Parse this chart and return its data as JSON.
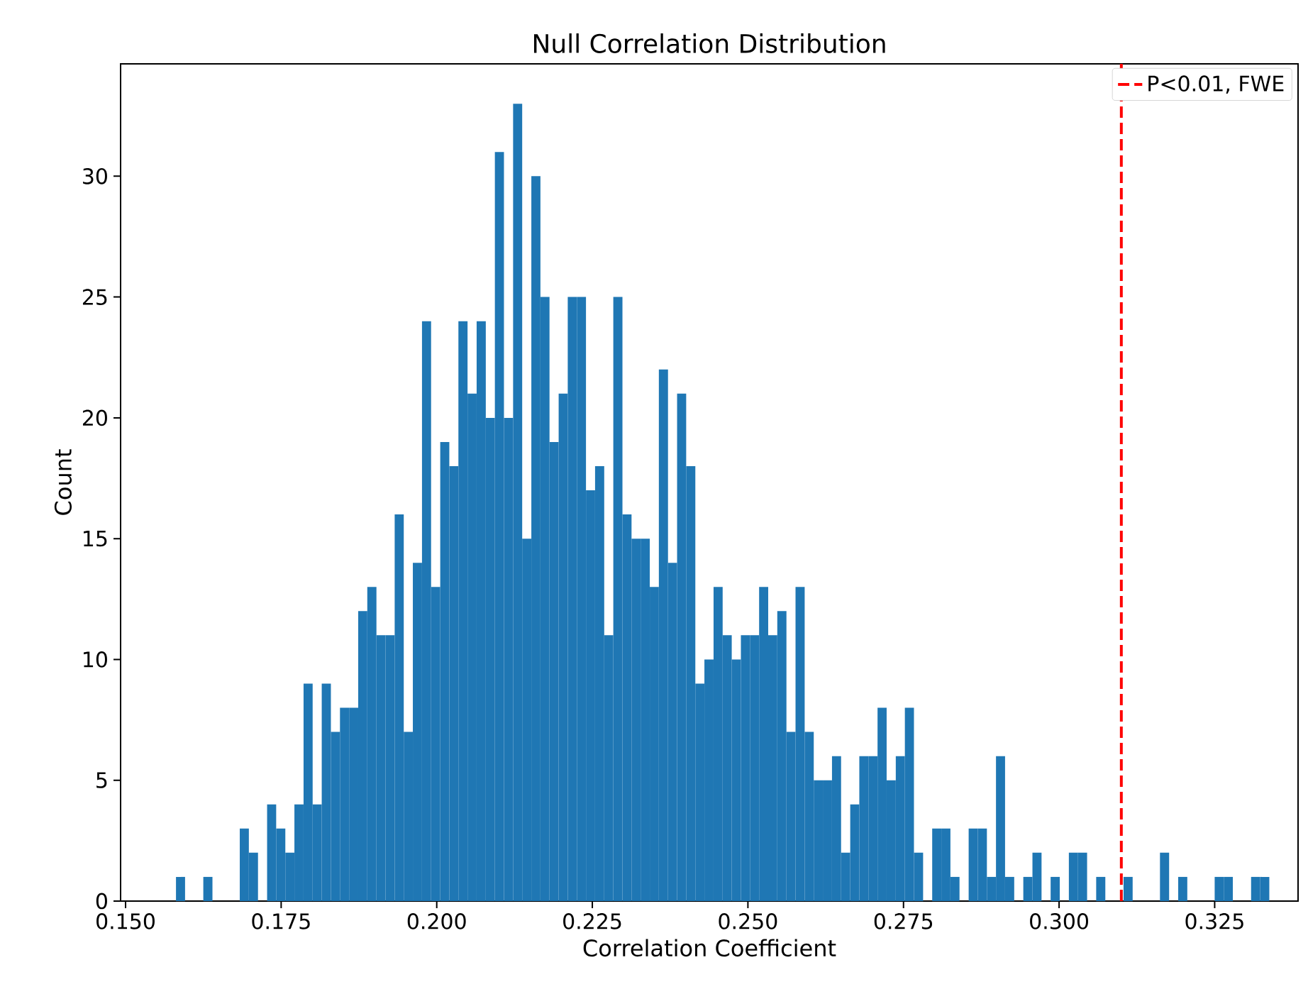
{
  "chart_data": {
    "type": "histogram",
    "title": "Null Correlation Distribution",
    "xlabel": "Correlation Coefficient",
    "ylabel": "Count",
    "color": "#1f77b4",
    "bins": [
      0.1581,
      0.15956,
      0.16103,
      0.16249,
      0.16396,
      0.16542,
      0.16688,
      0.16835,
      0.16981,
      0.17128,
      0.17274,
      0.1742,
      0.17567,
      0.17713,
      0.1786,
      0.18006,
      0.18152,
      0.18299,
      0.18445,
      0.18592,
      0.18738,
      0.18884,
      0.19031,
      0.19177,
      0.19324,
      0.1947,
      0.19616,
      0.19763,
      0.19909,
      0.20056,
      0.20202,
      0.20348,
      0.20495,
      0.20641,
      0.20788,
      0.20934,
      0.2108,
      0.21227,
      0.21373,
      0.2152,
      0.21666,
      0.21812,
      0.21959,
      0.22105,
      0.22252,
      0.22398,
      0.22544,
      0.22691,
      0.22837,
      0.22984,
      0.2313,
      0.23276,
      0.23423,
      0.23569,
      0.23716,
      0.23862,
      0.24008,
      0.24155,
      0.24301,
      0.24448,
      0.24594,
      0.2474,
      0.24887,
      0.25033,
      0.2518,
      0.25326,
      0.25472,
      0.25619,
      0.25765,
      0.25912,
      0.26058,
      0.26204,
      0.26351,
      0.26497,
      0.26644,
      0.2679,
      0.26936,
      0.27083,
      0.27229,
      0.27376,
      0.27522,
      0.27668,
      0.27815,
      0.27961,
      0.28108,
      0.28254,
      0.284,
      0.28547,
      0.28693,
      0.2884,
      0.28986,
      0.29132,
      0.29279,
      0.29425,
      0.29572,
      0.29718,
      0.29864,
      0.30011,
      0.30157,
      0.30304,
      0.3045,
      0.30596,
      0.30743,
      0.30889,
      0.31036,
      0.31182,
      0.31328,
      0.31475,
      0.31621,
      0.31768,
      0.31914,
      0.3206,
      0.32207,
      0.32353,
      0.325,
      0.32646,
      0.32792,
      0.32939,
      0.33085,
      0.33232,
      0.33378
    ],
    "values": [
      1,
      0,
      0,
      1,
      0,
      0,
      0,
      3,
      2,
      0,
      4,
      3,
      2,
      4,
      9,
      4,
      9,
      7,
      8,
      8,
      12,
      13,
      11,
      11,
      16,
      7,
      14,
      24,
      13,
      19,
      18,
      24,
      21,
      24,
      20,
      31,
      20,
      33,
      15,
      30,
      25,
      19,
      21,
      25,
      25,
      17,
      18,
      11,
      25,
      16,
      15,
      15,
      13,
      22,
      14,
      21,
      18,
      9,
      10,
      13,
      11,
      10,
      11,
      11,
      13,
      11,
      12,
      7,
      13,
      7,
      5,
      5,
      6,
      2,
      4,
      6,
      6,
      8,
      5,
      6,
      8,
      2,
      0,
      3,
      3,
      1,
      0,
      3,
      3,
      1,
      6,
      1,
      0,
      1,
      2,
      0,
      1,
      0,
      2,
      2,
      0,
      1,
      0,
      0,
      1,
      0,
      0,
      0,
      2,
      0,
      1,
      0,
      0,
      0,
      1,
      1,
      0,
      0,
      1,
      1
    ],
    "xlim": [
      0.1492,
      0.3384
    ],
    "ylim": [
      0,
      34.65
    ],
    "xticks": [
      {
        "value": 0.15,
        "label": "0.150"
      },
      {
        "value": 0.175,
        "label": "0.175"
      },
      {
        "value": 0.2,
        "label": "0.200"
      },
      {
        "value": 0.225,
        "label": "0.225"
      },
      {
        "value": 0.25,
        "label": "0.250"
      },
      {
        "value": 0.275,
        "label": "0.275"
      },
      {
        "value": 0.3,
        "label": "0.300"
      },
      {
        "value": 0.325,
        "label": "0.325"
      }
    ],
    "yticks": [
      0,
      5,
      10,
      15,
      20,
      25,
      30
    ],
    "ref_lines": [
      {
        "axis": "x",
        "value": 0.31,
        "label": "P<0.01, FWE",
        "color": "#ff0000",
        "line_style": "dashed"
      }
    ],
    "legend": "top right"
  }
}
